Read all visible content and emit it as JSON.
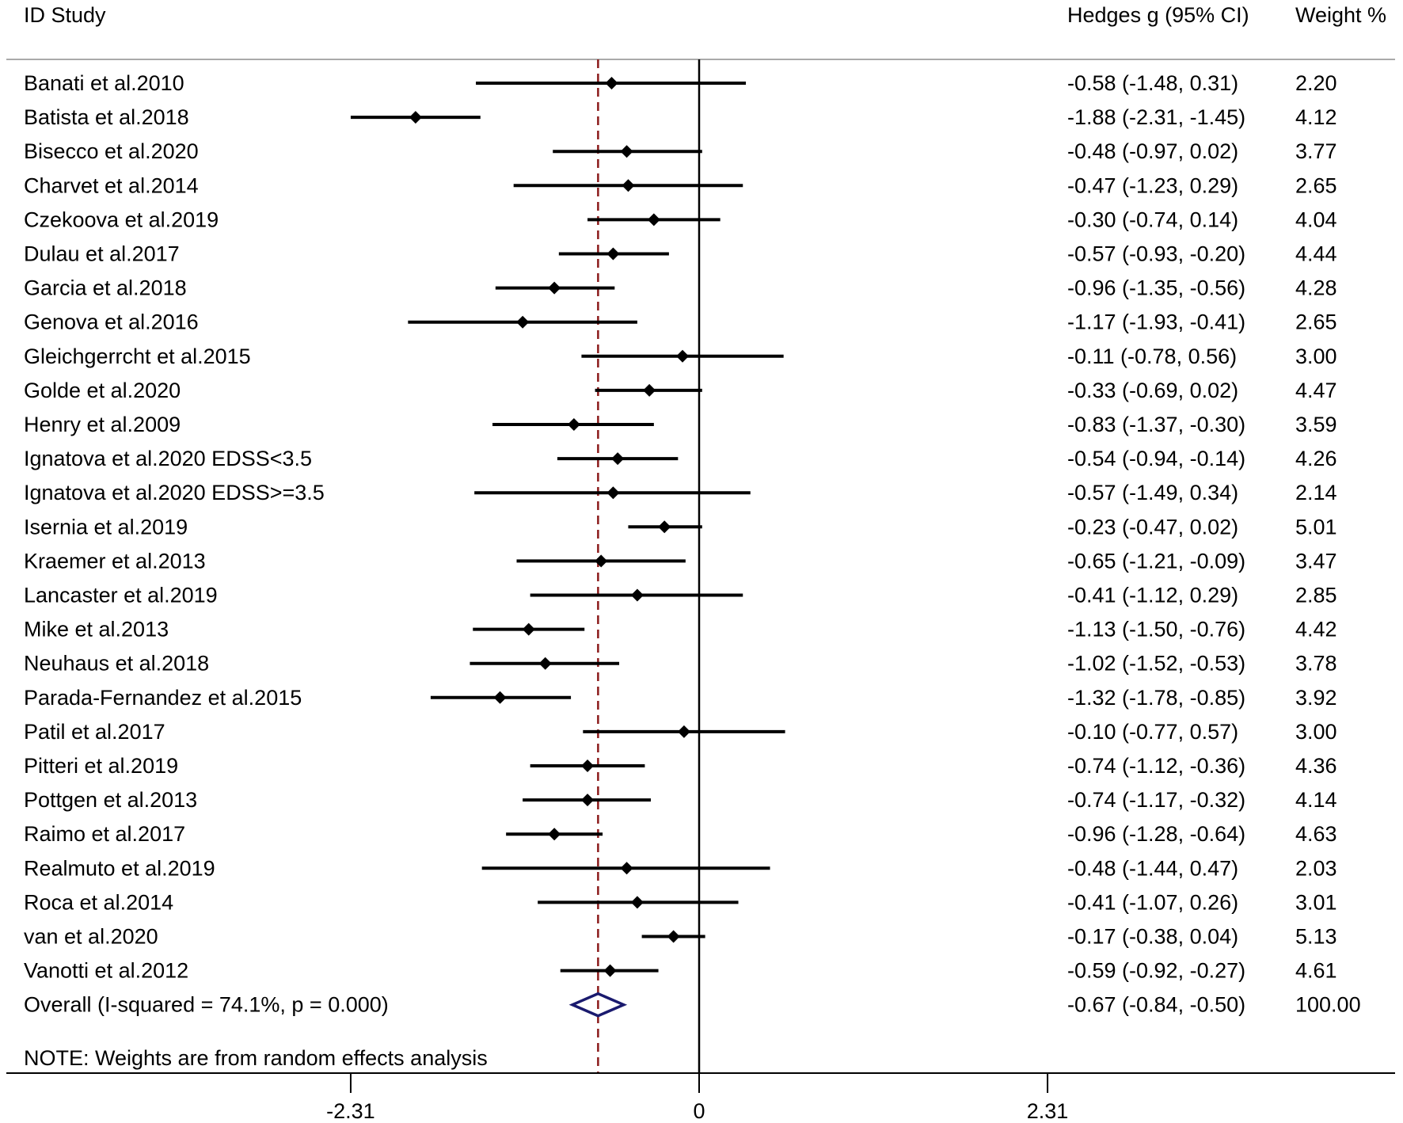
{
  "chart_data": {
    "type": "forest",
    "header": {
      "study": "ID Study",
      "effect": "Hedges g (95% CI)",
      "weight": "Weight %"
    },
    "studies": [
      {
        "name": "Banati et al.2010",
        "est": -0.58,
        "lo": -1.48,
        "hi": 0.31,
        "ci_text": "-0.58 (-1.48, 0.31)",
        "weight_text": "2.20"
      },
      {
        "name": "Batista et al.2018",
        "est": -1.88,
        "lo": -2.31,
        "hi": -1.45,
        "ci_text": "-1.88 (-2.31, -1.45)",
        "weight_text": "4.12"
      },
      {
        "name": "Bisecco et al.2020",
        "est": -0.48,
        "lo": -0.97,
        "hi": 0.02,
        "ci_text": "-0.48 (-0.97, 0.02)",
        "weight_text": "3.77"
      },
      {
        "name": "Charvet et al.2014",
        "est": -0.47,
        "lo": -1.23,
        "hi": 0.29,
        "ci_text": "-0.47 (-1.23, 0.29)",
        "weight_text": "2.65"
      },
      {
        "name": "Czekoova et al.2019",
        "est": -0.3,
        "lo": -0.74,
        "hi": 0.14,
        "ci_text": "-0.30 (-0.74, 0.14)",
        "weight_text": "4.04"
      },
      {
        "name": "Dulau et al.2017",
        "est": -0.57,
        "lo": -0.93,
        "hi": -0.2,
        "ci_text": "-0.57 (-0.93, -0.20)",
        "weight_text": "4.44"
      },
      {
        "name": "Garcia et al.2018",
        "est": -0.96,
        "lo": -1.35,
        "hi": -0.56,
        "ci_text": "-0.96 (-1.35, -0.56)",
        "weight_text": "4.28"
      },
      {
        "name": "Genova et al.2016",
        "est": -1.17,
        "lo": -1.93,
        "hi": -0.41,
        "ci_text": "-1.17 (-1.93, -0.41)",
        "weight_text": "2.65"
      },
      {
        "name": "Gleichgerrcht et al.2015",
        "est": -0.11,
        "lo": -0.78,
        "hi": 0.56,
        "ci_text": "-0.11 (-0.78, 0.56)",
        "weight_text": "3.00"
      },
      {
        "name": "Golde et al.2020",
        "est": -0.33,
        "lo": -0.69,
        "hi": 0.02,
        "ci_text": "-0.33 (-0.69, 0.02)",
        "weight_text": "4.47"
      },
      {
        "name": "Henry et al.2009",
        "est": -0.83,
        "lo": -1.37,
        "hi": -0.3,
        "ci_text": "-0.83 (-1.37, -0.30)",
        "weight_text": "3.59"
      },
      {
        "name": "Ignatova et al.2020 EDSS<3.5",
        "est": -0.54,
        "lo": -0.94,
        "hi": -0.14,
        "ci_text": "-0.54 (-0.94, -0.14)",
        "weight_text": "4.26"
      },
      {
        "name": "Ignatova et al.2020 EDSS>=3.5",
        "est": -0.57,
        "lo": -1.49,
        "hi": 0.34,
        "ci_text": "-0.57 (-1.49, 0.34)",
        "weight_text": "2.14"
      },
      {
        "name": "Isernia et al.2019",
        "est": -0.23,
        "lo": -0.47,
        "hi": 0.02,
        "ci_text": "-0.23 (-0.47, 0.02)",
        "weight_text": "5.01"
      },
      {
        "name": "Kraemer et al.2013",
        "est": -0.65,
        "lo": -1.21,
        "hi": -0.09,
        "ci_text": "-0.65 (-1.21, -0.09)",
        "weight_text": "3.47"
      },
      {
        "name": "Lancaster et al.2019",
        "est": -0.41,
        "lo": -1.12,
        "hi": 0.29,
        "ci_text": "-0.41 (-1.12, 0.29)",
        "weight_text": "2.85"
      },
      {
        "name": "Mike et al.2013",
        "est": -1.13,
        "lo": -1.5,
        "hi": -0.76,
        "ci_text": "-1.13 (-1.50, -0.76)",
        "weight_text": "4.42"
      },
      {
        "name": "Neuhaus et al.2018",
        "est": -1.02,
        "lo": -1.52,
        "hi": -0.53,
        "ci_text": "-1.02 (-1.52, -0.53)",
        "weight_text": "3.78"
      },
      {
        "name": "Parada-Fernandez et al.2015",
        "est": -1.32,
        "lo": -1.78,
        "hi": -0.85,
        "ci_text": "-1.32 (-1.78, -0.85)",
        "weight_text": "3.92"
      },
      {
        "name": "Patil et al.2017",
        "est": -0.1,
        "lo": -0.77,
        "hi": 0.57,
        "ci_text": "-0.10 (-0.77, 0.57)",
        "weight_text": "3.00"
      },
      {
        "name": "Pitteri et al.2019",
        "est": -0.74,
        "lo": -1.12,
        "hi": -0.36,
        "ci_text": "-0.74 (-1.12, -0.36)",
        "weight_text": "4.36"
      },
      {
        "name": "Pottgen et al.2013",
        "est": -0.74,
        "lo": -1.17,
        "hi": -0.32,
        "ci_text": "-0.74 (-1.17, -0.32)",
        "weight_text": "4.14"
      },
      {
        "name": "Raimo et al.2017",
        "est": -0.96,
        "lo": -1.28,
        "hi": -0.64,
        "ci_text": "-0.96 (-1.28, -0.64)",
        "weight_text": "4.63"
      },
      {
        "name": "Realmuto et al.2019",
        "est": -0.48,
        "lo": -1.44,
        "hi": 0.47,
        "ci_text": "-0.48 (-1.44, 0.47)",
        "weight_text": "2.03"
      },
      {
        "name": "Roca et al.2014",
        "est": -0.41,
        "lo": -1.07,
        "hi": 0.26,
        "ci_text": "-0.41 (-1.07, 0.26)",
        "weight_text": "3.01"
      },
      {
        "name": "van et al.2020",
        "est": -0.17,
        "lo": -0.38,
        "hi": 0.04,
        "ci_text": "-0.17 (-0.38, 0.04)",
        "weight_text": "5.13"
      },
      {
        "name": "Vanotti et al.2012",
        "est": -0.59,
        "lo": -0.92,
        "hi": -0.27,
        "ci_text": "-0.59 (-0.92, -0.27)",
        "weight_text": "4.61"
      }
    ],
    "overall": {
      "label": "Overall  (I-squared = 74.1%, p = 0.000)",
      "est": -0.67,
      "lo": -0.84,
      "hi": -0.5,
      "ci_text": "-0.67 (-0.84, -0.50)",
      "weight_text": "100.00"
    },
    "note": "NOTE: Weights are from random effects analysis",
    "x_ticks": [
      {
        "value": -2.31,
        "label": "-2.31"
      },
      {
        "value": 0,
        "label": "0"
      },
      {
        "value": 2.31,
        "label": "2.31"
      }
    ],
    "xlim": [
      -2.31,
      2.31
    ],
    "null_line": 0,
    "colors": {
      "marker": "#000000",
      "overall_diamond": "#1a1a6e",
      "overall_line": "#8b1a1a"
    }
  }
}
